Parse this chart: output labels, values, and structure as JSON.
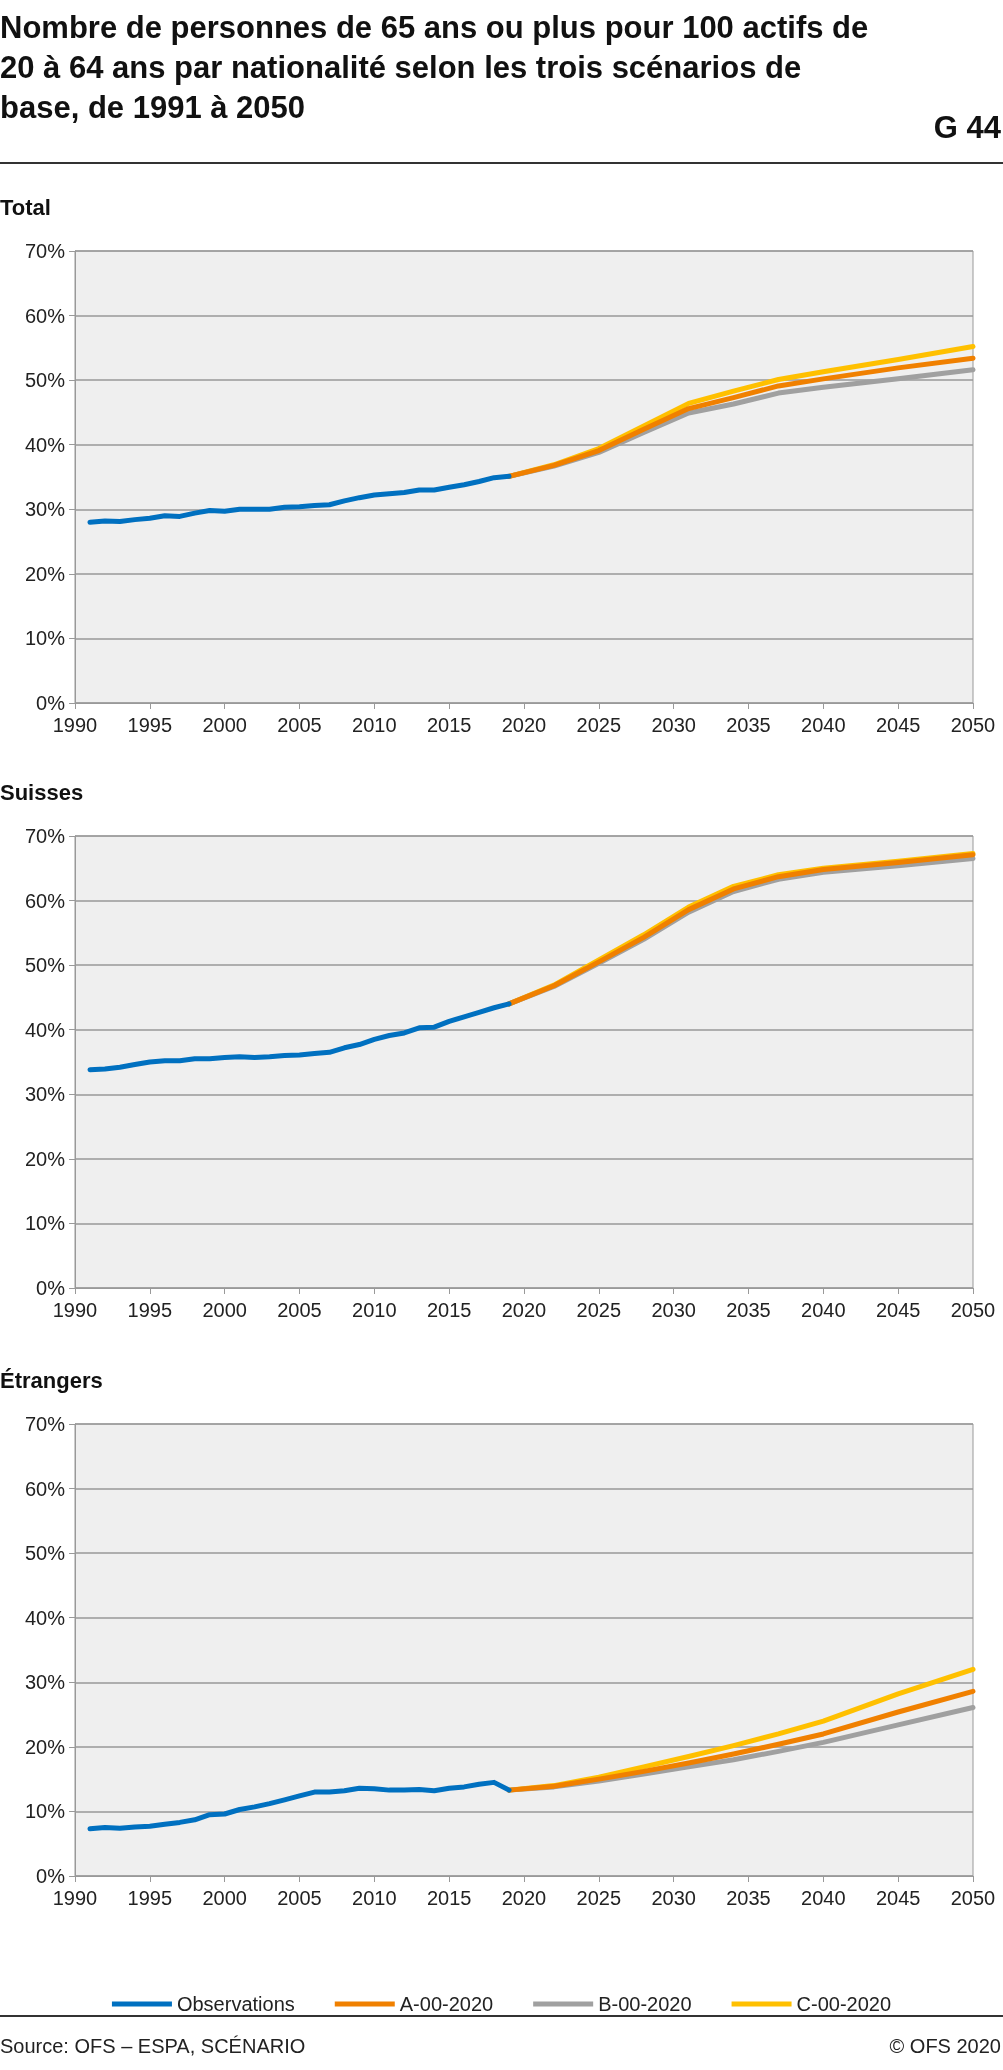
{
  "chart_data": [
    {
      "type": "line",
      "title": "Nombre de personnes de 65 ans ou plus pour 100 actifs de 20 à 64 ans par nationalité selon les trois scénarios de base, de 1991 à 2050",
      "subtitle": "Total",
      "annotations": [
        "G 44"
      ],
      "xlim": [
        1990,
        2050
      ],
      "xticks": [
        1990,
        1995,
        2000,
        2005,
        2010,
        2015,
        2020,
        2025,
        2030,
        2035,
        2040,
        2045,
        2050
      ],
      "ylim": [
        0,
        70
      ],
      "yticks": [
        {
          "value": 0,
          "label": "0%"
        },
        {
          "value": 10,
          "label": "10%"
        },
        {
          "value": 20,
          "label": "20%"
        },
        {
          "value": 30,
          "label": "30%"
        },
        {
          "value": 40,
          "label": "40%"
        },
        {
          "value": 50,
          "label": "50%"
        },
        {
          "value": 60,
          "label": "60%"
        },
        {
          "value": 70,
          "label": "70%"
        }
      ],
      "grid": "y",
      "legend": false,
      "marker": "none",
      "line_style": "solid",
      "series": [
        {
          "color": "#0070c0",
          "x": [
            1991,
            1992,
            1993,
            1994,
            1995,
            1996,
            1997,
            1998,
            1999,
            2000,
            2001,
            2002,
            2003,
            2004,
            2005,
            2006,
            2007,
            2008,
            2009,
            2010,
            2011,
            2012,
            2013,
            2014,
            2015,
            2016,
            2017,
            2018,
            2019
          ],
          "values": [
            28.0,
            28.2,
            28.1,
            28.4,
            28.6,
            29.0,
            28.9,
            29.4,
            29.8,
            29.7,
            30.0,
            30.0,
            30.0,
            30.3,
            30.4,
            30.6,
            30.7,
            31.3,
            31.8,
            32.2,
            32.4,
            32.6,
            33.0,
            33.0,
            33.4,
            33.8,
            34.3,
            34.9,
            35.1
          ]
        },
        {
          "color": "#f08000",
          "x": [
            2019,
            2022,
            2025,
            2028,
            2031,
            2034,
            2037,
            2040,
            2045,
            2050
          ],
          "values": [
            35.1,
            36.8,
            39.1,
            42.4,
            45.6,
            47.3,
            49.1,
            50.2,
            51.9,
            53.4
          ]
        },
        {
          "color": "#a0a0a0",
          "x": [
            2019,
            2022,
            2025,
            2028,
            2031,
            2034,
            2037,
            2040,
            2045,
            2050
          ],
          "values": [
            35.1,
            36.7,
            38.8,
            41.9,
            44.9,
            46.3,
            48.0,
            48.9,
            50.2,
            51.6
          ]
        },
        {
          "color": "#ffc000",
          "x": [
            2019,
            2022,
            2025,
            2028,
            2031,
            2034,
            2037,
            2040,
            2045,
            2050
          ],
          "values": [
            35.1,
            36.9,
            39.4,
            42.9,
            46.4,
            48.3,
            50.1,
            51.3,
            53.2,
            55.2
          ]
        }
      ]
    },
    {
      "type": "line",
      "title": "Suisses",
      "xlim": [
        1990,
        2050
      ],
      "xticks": [
        1990,
        1995,
        2000,
        2005,
        2010,
        2015,
        2020,
        2025,
        2030,
        2035,
        2040,
        2045,
        2050
      ],
      "ylim": [
        0,
        70
      ],
      "yticks": [
        {
          "value": 0,
          "label": "0%"
        },
        {
          "value": 10,
          "label": "10%"
        },
        {
          "value": 20,
          "label": "20%"
        },
        {
          "value": 30,
          "label": "30%"
        },
        {
          "value": 40,
          "label": "40%"
        },
        {
          "value": 50,
          "label": "50%"
        },
        {
          "value": 60,
          "label": "60%"
        },
        {
          "value": 70,
          "label": "70%"
        }
      ],
      "grid": "y",
      "legend": false,
      "marker": "none",
      "line_style": "solid",
      "series": [
        {
          "color": "#0070c0",
          "x": [
            1991,
            1992,
            1993,
            1994,
            1995,
            1996,
            1997,
            1998,
            1999,
            2000,
            2001,
            2002,
            2003,
            2004,
            2005,
            2006,
            2007,
            2008,
            2009,
            2010,
            2011,
            2012,
            2013,
            2014,
            2015,
            2016,
            2017,
            2018,
            2019
          ],
          "values": [
            33.8,
            33.9,
            34.2,
            34.6,
            35.0,
            35.2,
            35.2,
            35.5,
            35.5,
            35.7,
            35.8,
            35.7,
            35.8,
            36.0,
            36.1,
            36.3,
            36.5,
            37.2,
            37.7,
            38.5,
            39.1,
            39.5,
            40.3,
            40.4,
            41.3,
            42.0,
            42.7,
            43.4,
            44.0
          ]
        },
        {
          "color": "#f08000",
          "x": [
            2019,
            2022,
            2025,
            2028,
            2031,
            2034,
            2037,
            2040,
            2045,
            2050
          ],
          "values": [
            44.0,
            46.8,
            50.5,
            54.3,
            58.6,
            61.8,
            63.7,
            64.8,
            65.9,
            67.1
          ]
        },
        {
          "color": "#a0a0a0",
          "x": [
            2019,
            2022,
            2025,
            2028,
            2031,
            2034,
            2037,
            2040,
            2045,
            2050
          ],
          "values": [
            44.0,
            46.7,
            50.3,
            54.0,
            58.2,
            61.4,
            63.3,
            64.4,
            65.4,
            66.5
          ]
        },
        {
          "color": "#ffc000",
          "x": [
            2019,
            2022,
            2025,
            2028,
            2031,
            2034,
            2037,
            2040,
            2045,
            2050
          ],
          "values": [
            44.0,
            46.9,
            50.8,
            54.7,
            59.0,
            62.2,
            64.0,
            65.0,
            66.1,
            67.3
          ]
        }
      ]
    },
    {
      "type": "line",
      "title": "Étrangers",
      "annotations": [
        "Source: OFS – ESPA, SCÉNARIO",
        "© OFS 2020"
      ],
      "xlim": [
        1990,
        2050
      ],
      "xticks": [
        1990,
        1995,
        2000,
        2005,
        2010,
        2015,
        2020,
        2025,
        2030,
        2035,
        2040,
        2045,
        2050
      ],
      "ylim": [
        0,
        70
      ],
      "yticks": [
        {
          "value": 0,
          "label": "0%"
        },
        {
          "value": 10,
          "label": "10%"
        },
        {
          "value": 20,
          "label": "20%"
        },
        {
          "value": 30,
          "label": "30%"
        },
        {
          "value": 40,
          "label": "40%"
        },
        {
          "value": 50,
          "label": "50%"
        },
        {
          "value": 60,
          "label": "60%"
        },
        {
          "value": 70,
          "label": "70%"
        }
      ],
      "grid": "y",
      "legend": "bottom",
      "marker": "none",
      "line_style": "solid",
      "series": [
        {
          "name": "Observations",
          "color": "#0070c0",
          "x": [
            1991,
            1992,
            1993,
            1994,
            1995,
            1996,
            1997,
            1998,
            1999,
            2000,
            2001,
            2002,
            2003,
            2004,
            2005,
            2006,
            2007,
            2008,
            2009,
            2010,
            2011,
            2012,
            2013,
            2014,
            2015,
            2016,
            2017,
            2018,
            2019
          ],
          "values": [
            7.3,
            7.5,
            7.4,
            7.6,
            7.7,
            8.0,
            8.3,
            8.7,
            9.5,
            9.6,
            10.3,
            10.7,
            11.2,
            11.8,
            12.4,
            13.0,
            13.0,
            13.2,
            13.6,
            13.5,
            13.3,
            13.3,
            13.4,
            13.2,
            13.6,
            13.8,
            14.2,
            14.5,
            13.3
          ]
        },
        {
          "name": "A-00-2020",
          "color": "#f08000",
          "x": [
            2019,
            2022,
            2025,
            2028,
            2031,
            2034,
            2037,
            2040,
            2045,
            2050
          ],
          "values": [
            13.3,
            13.9,
            15.0,
            16.2,
            17.5,
            18.9,
            20.4,
            22.0,
            25.4,
            28.6
          ]
        },
        {
          "name": "B-00-2020",
          "color": "#a0a0a0",
          "x": [
            2019,
            2022,
            2025,
            2028,
            2031,
            2034,
            2037,
            2040,
            2045,
            2050
          ],
          "values": [
            13.3,
            13.8,
            14.7,
            15.8,
            16.9,
            18.0,
            19.3,
            20.7,
            23.4,
            26.1
          ]
        },
        {
          "name": "C-00-2020",
          "color": "#ffc000",
          "x": [
            2019,
            2022,
            2025,
            2028,
            2031,
            2034,
            2037,
            2040,
            2045,
            2050
          ],
          "values": [
            13.3,
            14.0,
            15.3,
            16.9,
            18.5,
            20.2,
            22.0,
            24.0,
            28.2,
            32.0
          ]
        }
      ]
    }
  ]
}
